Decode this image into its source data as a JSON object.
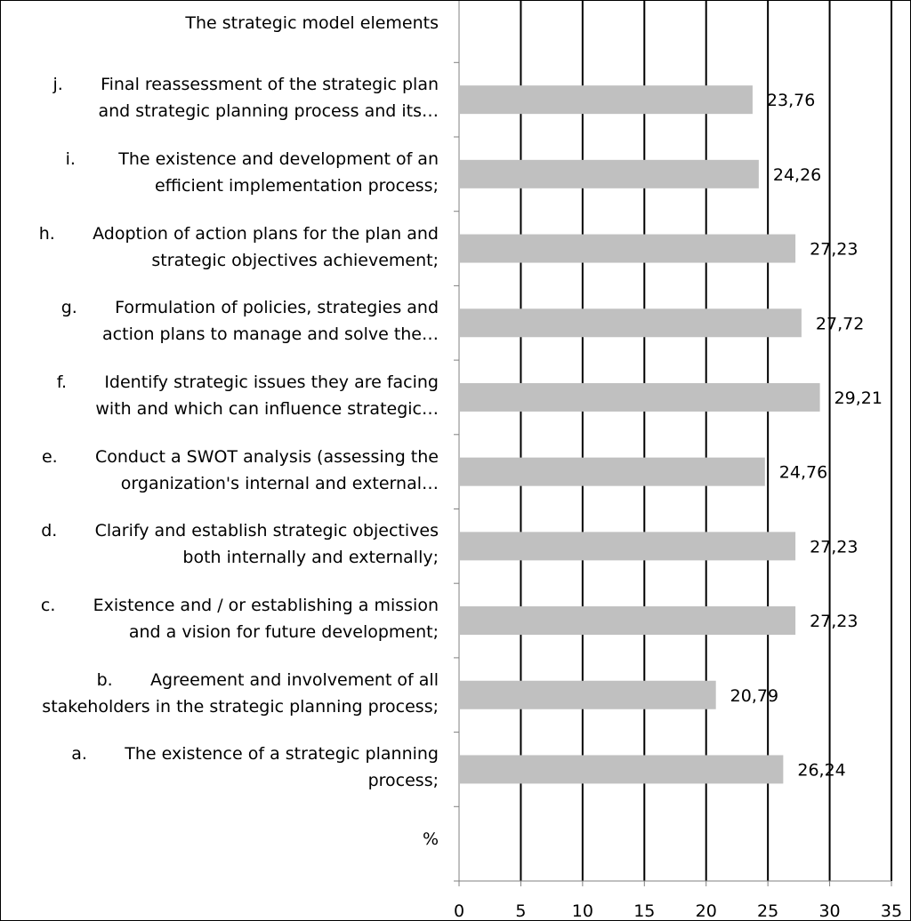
{
  "chart_data": {
    "type": "bar",
    "orientation": "horizontal",
    "title": "",
    "xlabel": "",
    "ylabel": "",
    "categories": [
      "The strategic model elements",
      "j.       Final reassessment of the strategic plan\nand strategic planning process and its…",
      "i.        The existence and development of an\nefficient implementation process;",
      "h.       Adoption of action plans for the plan and\nstrategic objectives achievement;",
      "g.       Formulation of policies, strategies and\naction plans to manage and solve the…",
      "f.       Identify strategic issues they are facing\nwith and which can influence strategic…",
      "e.       Conduct a SWOT analysis (assessing the\norganization's internal and external…",
      "d.       Clarify and establish strategic objectives\nboth internally and externally;",
      "c.       Existence and / or establishing a mission\nand a vision for future development;",
      "b.       Agreement and involvement of all\nstakeholders in the strategic planning process;",
      "a.       The existence of a strategic planning\nprocess;",
      "%"
    ],
    "values": [
      null,
      23.76,
      24.26,
      27.23,
      27.72,
      29.21,
      24.76,
      27.23,
      27.23,
      20.79,
      26.24,
      null
    ],
    "data_labels": [
      "",
      "23,76",
      "24,26",
      "27,23",
      "27,72",
      "29,21",
      "24,76",
      "27,23",
      "27,23",
      "20,79",
      "26,24",
      ""
    ],
    "xlim": [
      0,
      35
    ],
    "xticks": [
      "0",
      "5",
      "10",
      "15",
      "20",
      "25",
      "30",
      "35"
    ],
    "grid": true,
    "legend": "none",
    "colors": {
      "bar": "#c0c0c0",
      "gridline": "#000000",
      "axis": "#808080",
      "text": "#000000"
    }
  }
}
